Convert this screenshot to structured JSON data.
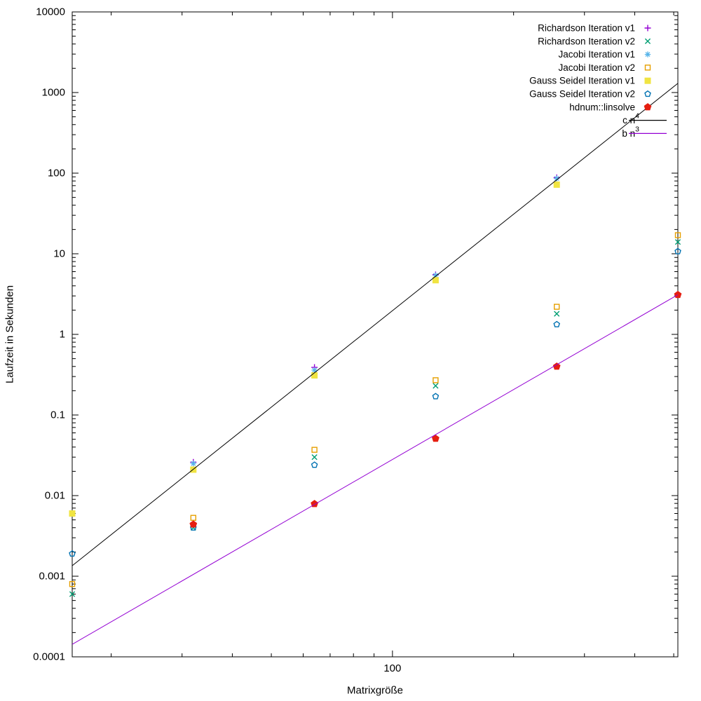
{
  "page": {
    "background": "#ffffff",
    "text_color": "#000000"
  },
  "chart_data": {
    "type": "scatter",
    "title": "",
    "xlabel": "Matrixgröße",
    "ylabel": "Laufzeit in Sekunden",
    "x_scale": "log",
    "y_scale": "log",
    "x_range": [
      16,
      512
    ],
    "y_range": [
      0.0001,
      10000
    ],
    "grid": false,
    "legend_position": "top-right",
    "x_ticks": {
      "major": [
        {
          "value": 100,
          "label": "100"
        }
      ],
      "minor": [
        20,
        30,
        40,
        50,
        60,
        70,
        80,
        90,
        200,
        300,
        400,
        500
      ]
    },
    "y_ticks": {
      "major": [
        {
          "value": 10000,
          "label": "10000"
        },
        {
          "value": 1000,
          "label": "1000"
        },
        {
          "value": 100,
          "label": "100"
        },
        {
          "value": 10,
          "label": "10"
        },
        {
          "value": 1,
          "label": "1"
        },
        {
          "value": 0.1,
          "label": "0.1"
        },
        {
          "value": 0.01,
          "label": "0.01"
        },
        {
          "value": 0.001,
          "label": "0.001"
        },
        {
          "value": 0.0001,
          "label": "0.0001"
        }
      ],
      "minor_per_decade": [
        2,
        3,
        4,
        5,
        6,
        7,
        8,
        9
      ]
    },
    "x": [
      16,
      32,
      64,
      128,
      256,
      512
    ],
    "series": [
      {
        "key": "richardson-v1",
        "label": "Richardson Iteration v1",
        "color": "#9400D3",
        "marker": "plus",
        "values": [
          null,
          0.026,
          0.39,
          5.5,
          88,
          null
        ]
      },
      {
        "key": "richardson-v2",
        "label": "Richardson Iteration v2",
        "color": "#009E73",
        "marker": "cross",
        "values": [
          0.0006,
          0.004,
          0.03,
          0.23,
          1.8,
          14
        ]
      },
      {
        "key": "jacobi-v1",
        "label": "Jacobi Iteration v1",
        "color": "#56B4E9",
        "marker": "asterisk",
        "values": [
          null,
          0.025,
          0.36,
          5.4,
          86,
          null
        ]
      },
      {
        "key": "jacobi-v2",
        "label": "Jacobi Iteration v2",
        "color": "#E69F00",
        "marker": "square-open",
        "values": [
          0.0008,
          0.0053,
          0.037,
          0.27,
          2.2,
          17
        ]
      },
      {
        "key": "gauss-seidel-v1",
        "label": "Gauss Seidel Iteration v1",
        "color": "#F0E442",
        "marker": "square-filled",
        "values": [
          0.006,
          0.021,
          0.31,
          4.7,
          72,
          null
        ]
      },
      {
        "key": "gauss-seidel-v2",
        "label": "Gauss Seidel Iteration v2",
        "color": "#0072B2",
        "marker": "pentagon-open",
        "values": [
          0.0019,
          0.004,
          0.024,
          0.17,
          1.33,
          10.7
        ]
      },
      {
        "key": "hdnum-linsolve",
        "label": "hdnum::linsolve",
        "color": "#E51E10",
        "marker": "pentagon-filled",
        "values": [
          null,
          0.0044,
          0.0079,
          0.051,
          0.4,
          3.1
        ]
      }
    ],
    "lines": [
      {
        "key": "c-n4",
        "label": "c n",
        "sup": "4",
        "color": "#000000",
        "from": {
          "x": 16,
          "y": 0.00135
        },
        "to": {
          "x": 512,
          "y": 1300
        }
      },
      {
        "key": "b-n3",
        "label": "b n",
        "sup": "3",
        "color": "#9400D3",
        "from": {
          "x": 16,
          "y": 0.000143
        },
        "to": {
          "x": 512,
          "y": 3.1
        }
      }
    ]
  }
}
